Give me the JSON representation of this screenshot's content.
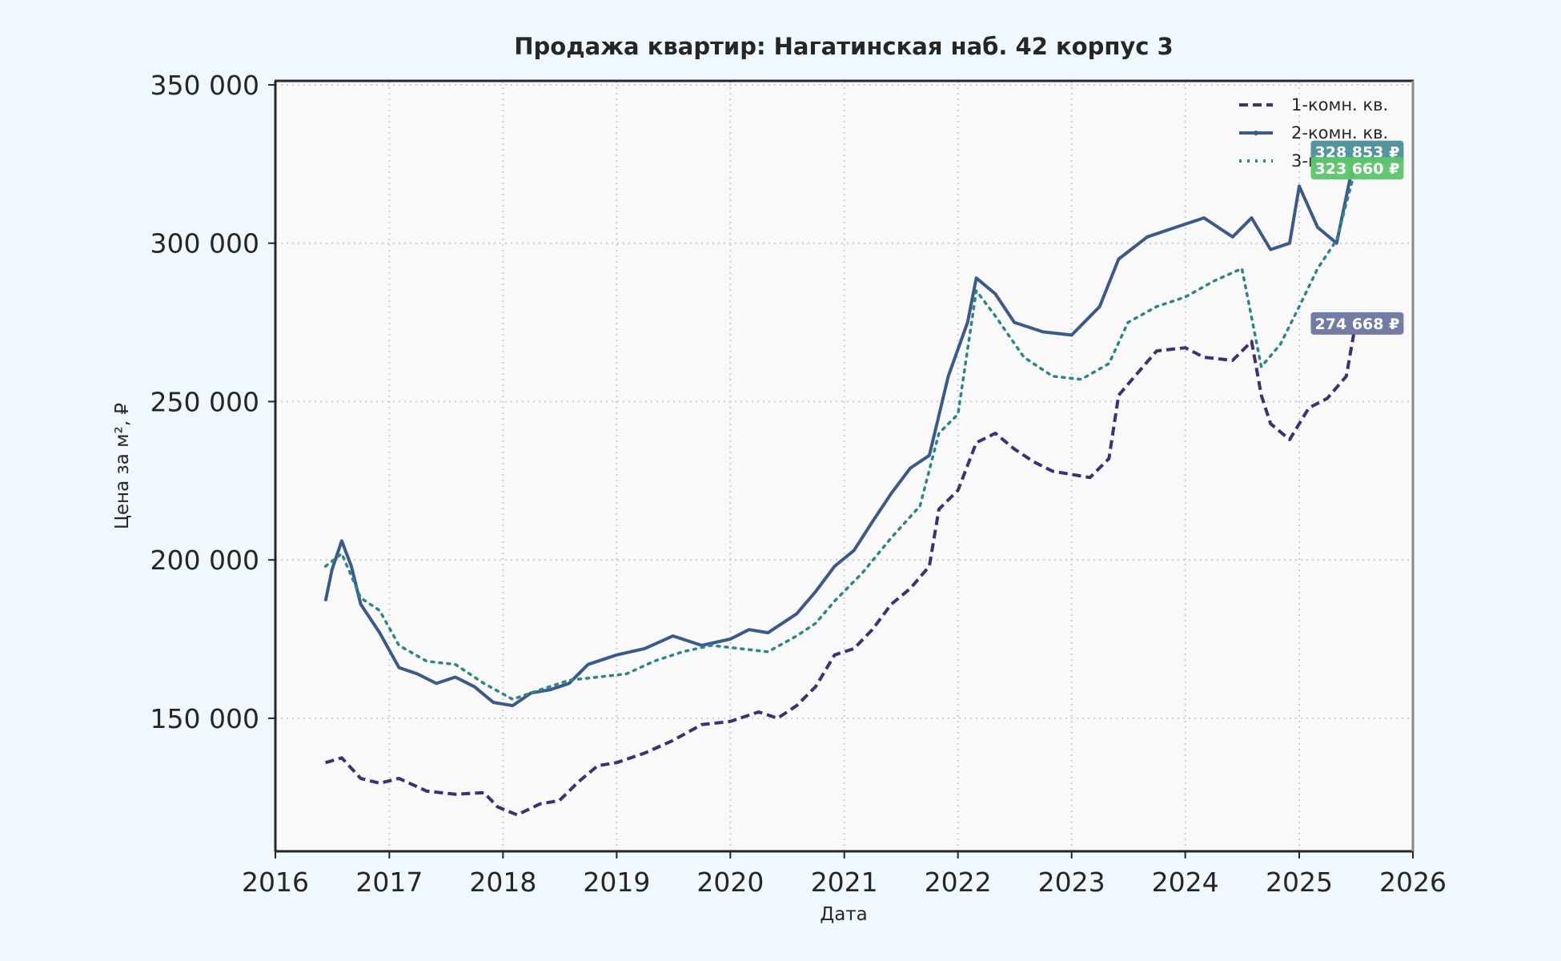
{
  "chart_data": {
    "type": "line",
    "title": "Продажа квартир: Нагатинская наб. 42 корпус 3",
    "xlabel": "Дата",
    "ylabel": "Цена за м², ₽",
    "xlim": [
      "2016-01-01",
      "2026-01-01"
    ],
    "ylim": [
      108000,
      351000
    ],
    "x_ticks": [
      "2016",
      "2017",
      "2018",
      "2019",
      "2020",
      "2021",
      "2022",
      "2023",
      "2024",
      "2025",
      "2026"
    ],
    "y_ticks": [
      150000,
      200000,
      250000,
      300000,
      350000
    ],
    "y_tick_labels": [
      "150 000",
      "200 000",
      "250 000",
      "300 000",
      "350 000"
    ],
    "grid": true,
    "legend_position": "top-right",
    "series": [
      {
        "name": "1-комн. кв.",
        "color": "#3f2f73",
        "style": "dashed",
        "points": [
          [
            "2016-06-10",
            136000
          ],
          [
            "2016-08-01",
            137500
          ],
          [
            "2016-10-01",
            131000
          ],
          [
            "2016-12-01",
            129500
          ],
          [
            "2017-02-01",
            131000
          ],
          [
            "2017-05-01",
            127000
          ],
          [
            "2017-08-01",
            126000
          ],
          [
            "2017-11-01",
            126500
          ],
          [
            "2017-12-15",
            122000
          ],
          [
            "2018-02-15",
            119500
          ],
          [
            "2018-05-01",
            123000
          ],
          [
            "2018-07-01",
            124000
          ],
          [
            "2018-09-01",
            130000
          ],
          [
            "2018-11-01",
            135000
          ],
          [
            "2019-01-01",
            136000
          ],
          [
            "2019-04-01",
            139000
          ],
          [
            "2019-07-01",
            143000
          ],
          [
            "2019-10-01",
            148000
          ],
          [
            "2020-01-01",
            149000
          ],
          [
            "2020-04-01",
            152000
          ],
          [
            "2020-06-01",
            150000
          ],
          [
            "2020-08-01",
            154000
          ],
          [
            "2020-10-01",
            160000
          ],
          [
            "2020-12-01",
            170000
          ],
          [
            "2021-02-01",
            172000
          ],
          [
            "2021-04-01",
            178000
          ],
          [
            "2021-06-01",
            186000
          ],
          [
            "2021-08-01",
            191000
          ],
          [
            "2021-10-01",
            198000
          ],
          [
            "2021-11-01",
            216000
          ],
          [
            "2022-01-01",
            222000
          ],
          [
            "2022-03-01",
            237000
          ],
          [
            "2022-05-01",
            240000
          ],
          [
            "2022-07-01",
            235000
          ],
          [
            "2022-09-01",
            231000
          ],
          [
            "2022-11-01",
            228000
          ],
          [
            "2023-01-01",
            227000
          ],
          [
            "2023-03-01",
            226000
          ],
          [
            "2023-05-01",
            232000
          ],
          [
            "2023-06-01",
            252000
          ],
          [
            "2023-08-01",
            259000
          ],
          [
            "2023-10-01",
            266000
          ],
          [
            "2024-01-01",
            267000
          ],
          [
            "2024-03-01",
            264000
          ],
          [
            "2024-06-01",
            263000
          ],
          [
            "2024-08-01",
            269000
          ],
          [
            "2024-09-01",
            252000
          ],
          [
            "2024-10-01",
            243000
          ],
          [
            "2024-12-01",
            238000
          ],
          [
            "2025-02-01",
            248000
          ],
          [
            "2025-04-01",
            251000
          ],
          [
            "2025-06-01",
            258000
          ],
          [
            "2025-07-01",
            274668
          ]
        ]
      },
      {
        "name": "2-комн. кв.",
        "color": "#3b5a8a",
        "style": "solid",
        "points": [
          [
            "2016-06-10",
            187000
          ],
          [
            "2016-07-01",
            197000
          ],
          [
            "2016-08-01",
            206000
          ],
          [
            "2016-09-01",
            198000
          ],
          [
            "2016-10-01",
            186000
          ],
          [
            "2016-12-01",
            177000
          ],
          [
            "2017-02-01",
            166000
          ],
          [
            "2017-04-01",
            164000
          ],
          [
            "2017-06-01",
            161000
          ],
          [
            "2017-08-01",
            163000
          ],
          [
            "2017-10-01",
            160000
          ],
          [
            "2017-12-01",
            155000
          ],
          [
            "2018-02-01",
            154000
          ],
          [
            "2018-04-01",
            158000
          ],
          [
            "2018-06-01",
            159000
          ],
          [
            "2018-08-01",
            161000
          ],
          [
            "2018-10-01",
            167000
          ],
          [
            "2019-01-01",
            170000
          ],
          [
            "2019-04-01",
            172000
          ],
          [
            "2019-07-01",
            176000
          ],
          [
            "2019-10-01",
            173000
          ],
          [
            "2020-01-01",
            175000
          ],
          [
            "2020-03-01",
            178000
          ],
          [
            "2020-05-01",
            177000
          ],
          [
            "2020-08-01",
            183000
          ],
          [
            "2020-10-01",
            190000
          ],
          [
            "2020-12-01",
            198000
          ],
          [
            "2021-02-01",
            203000
          ],
          [
            "2021-04-01",
            212000
          ],
          [
            "2021-06-01",
            221000
          ],
          [
            "2021-08-01",
            229000
          ],
          [
            "2021-10-01",
            233000
          ],
          [
            "2021-12-01",
            258000
          ],
          [
            "2022-02-01",
            275000
          ],
          [
            "2022-03-01",
            289000
          ],
          [
            "2022-05-01",
            284000
          ],
          [
            "2022-07-01",
            275000
          ],
          [
            "2022-10-01",
            272000
          ],
          [
            "2023-01-01",
            271000
          ],
          [
            "2023-04-01",
            280000
          ],
          [
            "2023-06-01",
            295000
          ],
          [
            "2023-09-01",
            302000
          ],
          [
            "2023-12-01",
            305000
          ],
          [
            "2024-03-01",
            308000
          ],
          [
            "2024-06-01",
            302000
          ],
          [
            "2024-08-01",
            308000
          ],
          [
            "2024-10-01",
            298000
          ],
          [
            "2024-12-01",
            300000
          ],
          [
            "2025-01-01",
            318000
          ],
          [
            "2025-03-01",
            305000
          ],
          [
            "2025-05-01",
            300000
          ],
          [
            "2025-07-01",
            328853
          ]
        ]
      },
      {
        "name": "3-комн. кв.",
        "color": "#2e8585",
        "style": "dotted",
        "points": [
          [
            "2016-06-10",
            198000
          ],
          [
            "2016-08-01",
            202000
          ],
          [
            "2016-10-01",
            188000
          ],
          [
            "2016-12-01",
            184000
          ],
          [
            "2017-02-01",
            173000
          ],
          [
            "2017-05-01",
            168000
          ],
          [
            "2017-08-01",
            167000
          ],
          [
            "2017-11-01",
            161000
          ],
          [
            "2018-02-01",
            156000
          ],
          [
            "2018-05-01",
            159000
          ],
          [
            "2018-08-01",
            162000
          ],
          [
            "2018-11-01",
            163000
          ],
          [
            "2019-02-01",
            164000
          ],
          [
            "2019-05-01",
            168000
          ],
          [
            "2019-08-01",
            171000
          ],
          [
            "2019-11-01",
            173000
          ],
          [
            "2020-02-01",
            172000
          ],
          [
            "2020-05-01",
            171000
          ],
          [
            "2020-08-01",
            176000
          ],
          [
            "2020-10-01",
            180000
          ],
          [
            "2020-12-01",
            187000
          ],
          [
            "2021-03-01",
            196000
          ],
          [
            "2021-06-01",
            207000
          ],
          [
            "2021-09-01",
            217000
          ],
          [
            "2021-11-01",
            240000
          ],
          [
            "2022-01-01",
            246000
          ],
          [
            "2022-03-01",
            285000
          ],
          [
            "2022-05-01",
            277000
          ],
          [
            "2022-08-01",
            264000
          ],
          [
            "2022-11-01",
            258000
          ],
          [
            "2023-02-01",
            257000
          ],
          [
            "2023-05-01",
            262000
          ],
          [
            "2023-07-01",
            275000
          ],
          [
            "2023-10-01",
            280000
          ],
          [
            "2024-01-01",
            283000
          ],
          [
            "2024-04-01",
            288000
          ],
          [
            "2024-07-01",
            292000
          ],
          [
            "2024-09-01",
            261000
          ],
          [
            "2024-11-01",
            268000
          ],
          [
            "2025-01-01",
            280000
          ],
          [
            "2025-03-01",
            292000
          ],
          [
            "2025-05-01",
            301000
          ],
          [
            "2025-07-01",
            323660
          ]
        ]
      }
    ],
    "annotations": [
      {
        "text": "328 853 ₽",
        "series": "2-комн. кв.",
        "color": "#4a8f9a",
        "date": "2025-07-01",
        "value": 328853
      },
      {
        "text": "323 660 ₽",
        "series": "3-комн. кв.",
        "color": "#5cc46a",
        "date": "2025-07-01",
        "value": 323660
      },
      {
        "text": "274 668 ₽",
        "series": "1-комн. кв.",
        "color": "#6a75a0",
        "date": "2025-07-01",
        "value": 274668
      }
    ]
  }
}
